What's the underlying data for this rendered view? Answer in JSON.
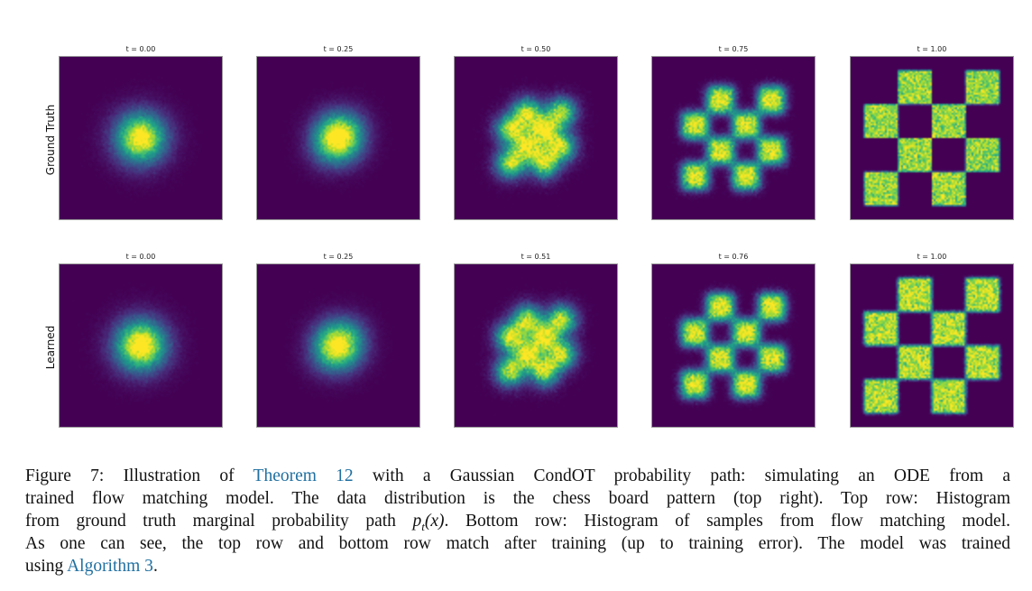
{
  "figure": {
    "row_labels": [
      "Ground Truth",
      "Learned"
    ],
    "rows": [
      {
        "label": "Ground Truth",
        "times": [
          "t = 0.00",
          "t = 0.25",
          "t = 0.50",
          "t = 0.75",
          "t = 1.00"
        ],
        "t_values": [
          0.0,
          0.25,
          0.5,
          0.75,
          1.0
        ]
      },
      {
        "label": "Learned",
        "times": [
          "t = 0.00",
          "t = 0.25",
          "t = 0.51",
          "t = 0.76",
          "t = 1.00"
        ],
        "t_values": [
          0.0,
          0.25,
          0.51,
          0.76,
          1.0
        ]
      }
    ],
    "colormap": "viridis",
    "background_color": "#440154"
  },
  "caption": {
    "lines": [
      {
        "pre": "Figure 7: Illustration of ",
        "link": "Theorem 12",
        "post": " with a Gaussian CondOT probability path: simulating an ODE from a"
      },
      {
        "pre": "trained flow matching model. The data distribution is the chess board pattern (top right). Top row: Histogram"
      },
      {
        "pre": "from ground truth marginal probability path ",
        "math": "p",
        "math_sub": "t",
        "math_arg": "(x)",
        "post": ". Bottom row: Histogram of samples from flow matching model."
      },
      {
        "pre": "As one can see, the top row and bottom row match after training (up to training error). The model was trained"
      },
      {
        "pre": "using ",
        "link": "Algorithm 3",
        "post": "."
      }
    ],
    "link_color": "#1f6fa0"
  }
}
